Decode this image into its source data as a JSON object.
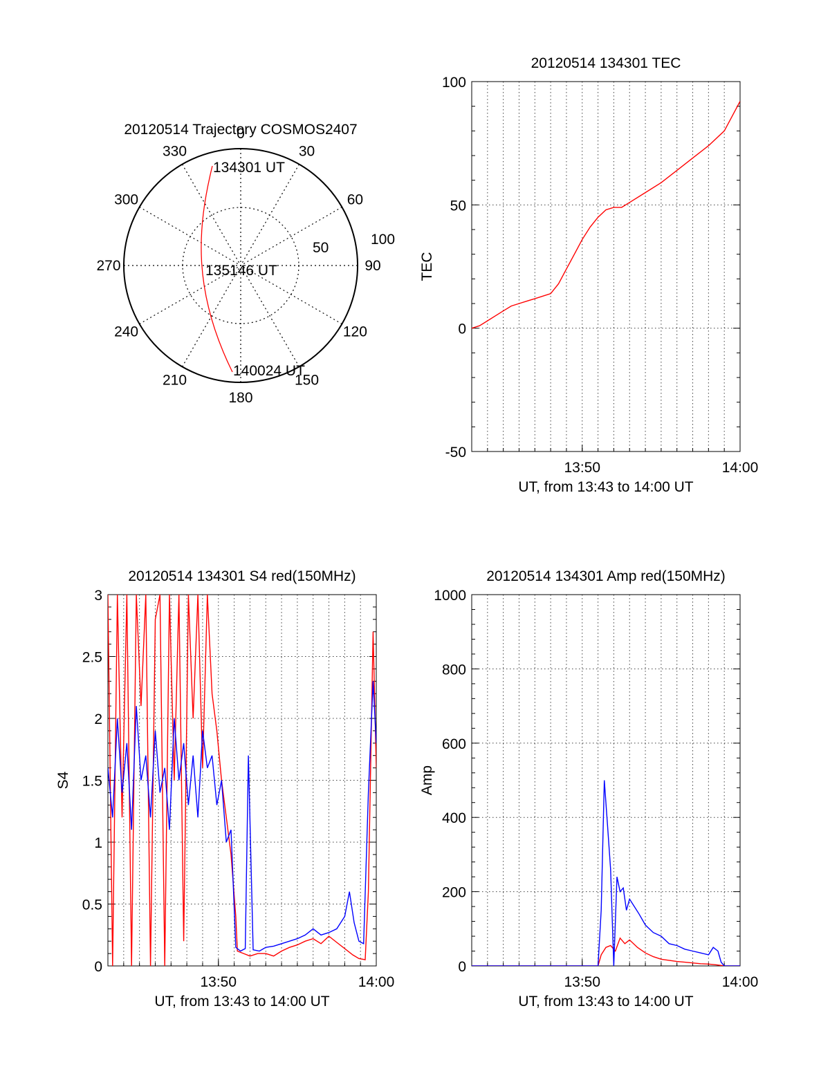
{
  "polar": {
    "title": "20120514 Trajectory COSMOS2407",
    "azimuth_labels": [
      "0",
      "30",
      "60",
      "90",
      "120",
      "150",
      "180",
      "210",
      "240",
      "270",
      "300",
      "330"
    ],
    "elevation_labels": [
      "50",
      "100"
    ],
    "track_labels": [
      "134301 UT",
      "135146 UT",
      "140024 UT"
    ],
    "track_color": "#ff0000"
  },
  "chart_data": [
    {
      "type": "line",
      "id": "tec",
      "title": "20120514 134301 TEC",
      "xlabel": "UT, from 13:43 to 14:00 UT",
      "ylabel": "TEC",
      "xlim": [
        0,
        17
      ],
      "ylim": [
        -50,
        100
      ],
      "yticks": [
        -50,
        0,
        50,
        100
      ],
      "xticks": [
        {
          "v": 7,
          "label": "13:50"
        },
        {
          "v": 17,
          "label": "14:00"
        }
      ],
      "grid": true,
      "series": [
        {
          "color": "#ff0000",
          "x": [
            0,
            0.5,
            1,
            1.5,
            2,
            2.5,
            3,
            3.5,
            4,
            4.5,
            5,
            5.5,
            6,
            6.5,
            7,
            7.5,
            8,
            8.5,
            9,
            9.5,
            10,
            11,
            12,
            13,
            14,
            15,
            16,
            16.5,
            17
          ],
          "y": [
            0,
            1,
            3,
            5,
            7,
            9,
            10,
            11,
            12,
            13,
            14,
            18,
            24,
            30,
            36,
            41,
            45,
            48,
            49,
            49,
            51,
            55,
            59,
            64,
            69,
            74,
            80,
            86,
            92
          ]
        }
      ]
    },
    {
      "type": "line",
      "id": "s4",
      "title": "20120514 134301 S4 red(150MHz)",
      "xlabel": "UT, from 13:43 to 14:00 UT",
      "ylabel": "S4",
      "xlim": [
        0,
        17
      ],
      "ylim": [
        0,
        3
      ],
      "yticks": [
        0,
        0.5,
        1,
        1.5,
        2,
        2.5,
        3
      ],
      "xticks": [
        {
          "v": 7,
          "label": "13:50"
        },
        {
          "v": 17,
          "label": "14:00"
        }
      ],
      "grid": true,
      "series": [
        {
          "color": "#ff0000",
          "x": [
            0,
            0.3,
            0.6,
            0.9,
            1.2,
            1.5,
            1.8,
            2.1,
            2.4,
            2.7,
            3.0,
            3.3,
            3.6,
            3.9,
            4.2,
            4.5,
            4.8,
            5.1,
            5.4,
            5.7,
            6.0,
            6.3,
            6.6,
            6.9,
            7.2,
            7.5,
            7.8,
            8.1,
            8.2,
            8.6,
            9,
            9.5,
            10,
            10.5,
            11,
            11.5,
            12,
            12.5,
            13,
            13.5,
            14,
            14.5,
            15,
            15.5,
            15.9,
            16.3,
            16.5,
            16.8,
            17
          ],
          "y": [
            3,
            0,
            3,
            1.2,
            3,
            0,
            3,
            2.1,
            3,
            0,
            2.8,
            3,
            0,
            3,
            1.5,
            3,
            0.2,
            3,
            2.0,
            3,
            1.6,
            3,
            2.2,
            1.9,
            1.5,
            1.2,
            0.9,
            0.4,
            0.12,
            0.1,
            0.08,
            0.1,
            0.1,
            0.08,
            0.12,
            0.15,
            0.17,
            0.2,
            0.22,
            0.18,
            0.24,
            0.19,
            0.14,
            0.09,
            0.06,
            0.05,
            0.6,
            2.7,
            1.6
          ]
        },
        {
          "color": "#0000ff",
          "x": [
            0,
            0.3,
            0.6,
            0.9,
            1.2,
            1.5,
            1.8,
            2.1,
            2.4,
            2.7,
            3.0,
            3.3,
            3.6,
            3.9,
            4.2,
            4.5,
            4.8,
            5.1,
            5.4,
            5.7,
            6.0,
            6.3,
            6.6,
            6.9,
            7.2,
            7.5,
            7.8,
            8.1,
            8.4,
            8.7,
            8.9,
            9.2,
            9.6,
            10,
            10.5,
            11,
            11.5,
            12,
            12.5,
            13,
            13.5,
            14,
            14.5,
            15,
            15.3,
            15.6,
            15.9,
            16.2,
            16.5,
            16.8,
            17
          ],
          "y": [
            1.6,
            1.2,
            2.0,
            1.4,
            1.8,
            1.1,
            2.1,
            1.5,
            1.7,
            1.2,
            1.9,
            1.4,
            1.6,
            1.1,
            2.0,
            1.5,
            1.8,
            1.3,
            1.7,
            1.2,
            1.9,
            1.6,
            1.7,
            1.3,
            1.5,
            1.0,
            1.1,
            0.15,
            0.12,
            0.14,
            1.7,
            0.13,
            0.12,
            0.15,
            0.16,
            0.18,
            0.2,
            0.22,
            0.25,
            0.3,
            0.25,
            0.27,
            0.3,
            0.4,
            0.6,
            0.35,
            0.2,
            0.18,
            1.4,
            2.3,
            1.8
          ]
        }
      ]
    },
    {
      "type": "line",
      "id": "amp",
      "title": "20120514 134301 Amp red(150MHz)",
      "xlabel": "UT, from 13:43 to 14:00 UT",
      "ylabel": "Amp",
      "xlim": [
        0,
        17
      ],
      "ylim": [
        0,
        1000
      ],
      "yticks": [
        0,
        200,
        400,
        600,
        800,
        1000
      ],
      "xticks": [
        {
          "v": 7,
          "label": "13:50"
        },
        {
          "v": 17,
          "label": "14:00"
        }
      ],
      "grid": true,
      "series": [
        {
          "color": "#ff0000",
          "x": [
            0,
            8.0,
            8.2,
            8.5,
            8.8,
            9.1,
            9.4,
            9.7,
            10.0,
            10.5,
            11,
            11.5,
            12,
            12.5,
            13,
            13.5,
            14,
            14.5,
            15,
            15.5,
            16,
            17
          ],
          "y": [
            0,
            0,
            30,
            50,
            55,
            40,
            75,
            60,
            70,
            50,
            35,
            25,
            18,
            15,
            12,
            10,
            8,
            6,
            5,
            3,
            0,
            0
          ]
        },
        {
          "color": "#0000ff",
          "x": [
            0,
            8.0,
            8.2,
            8.4,
            8.6,
            8.8,
            9.0,
            9.2,
            9.4,
            9.6,
            9.8,
            10.0,
            10.3,
            10.6,
            11,
            11.5,
            12,
            12.5,
            13,
            13.5,
            14,
            14.5,
            15,
            15.3,
            15.6,
            15.8,
            16,
            17
          ],
          "y": [
            0,
            0,
            150,
            500,
            380,
            260,
            0,
            240,
            200,
            210,
            150,
            180,
            160,
            140,
            110,
            90,
            80,
            60,
            55,
            45,
            40,
            35,
            30,
            50,
            40,
            10,
            0,
            0
          ]
        }
      ]
    }
  ]
}
